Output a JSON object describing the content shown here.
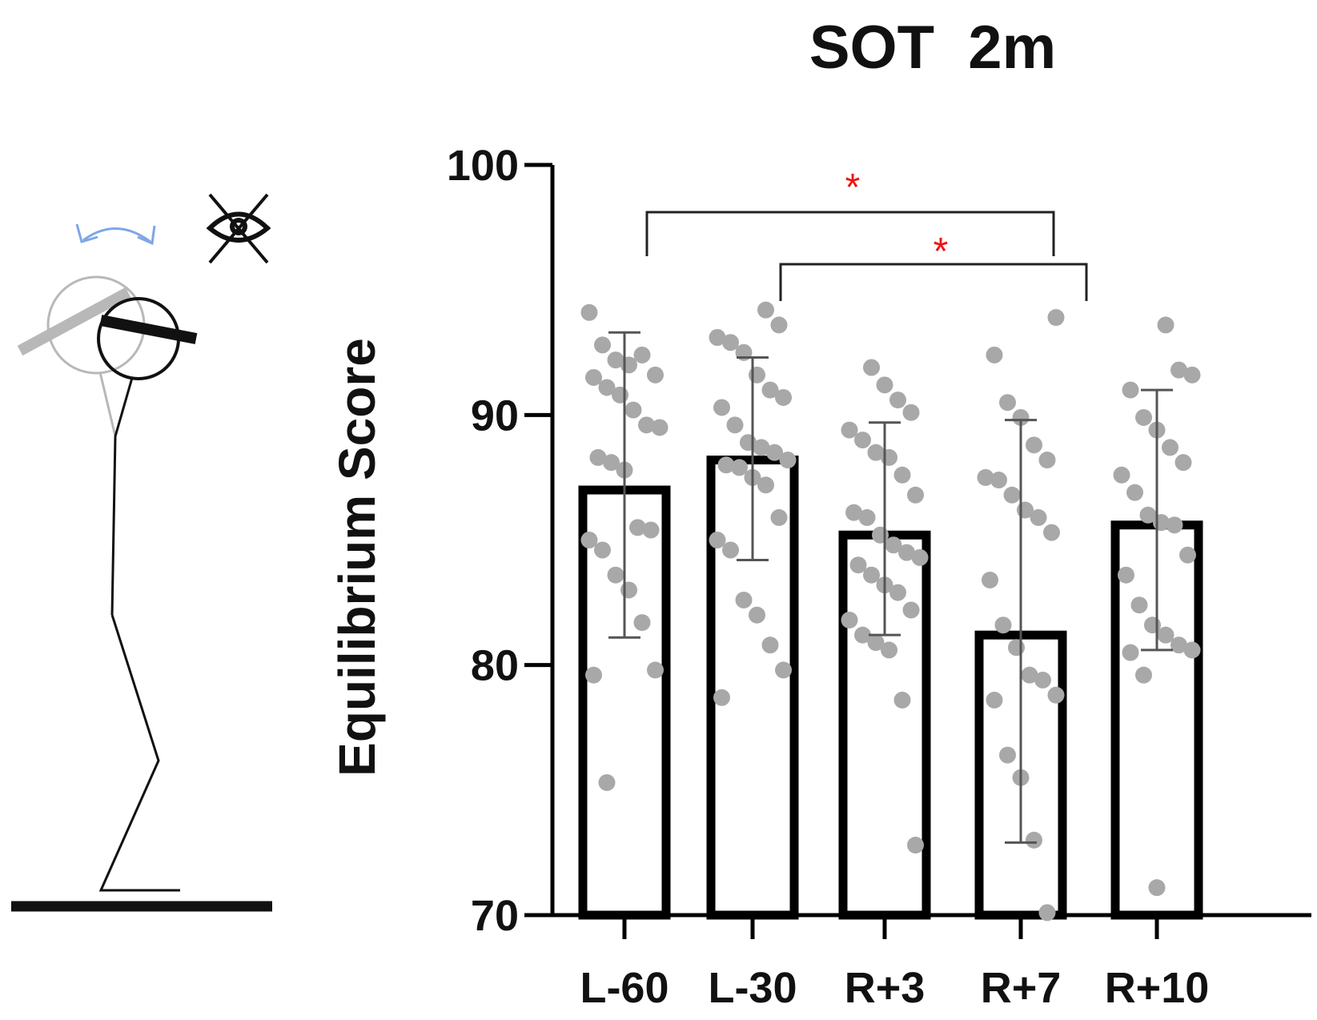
{
  "chart_data": {
    "type": "bar",
    "title": "SOT  2m",
    "xlabel": "",
    "ylabel": "Equilibrium Score",
    "ylim": [
      70,
      100
    ],
    "yticks": [
      "70",
      "80",
      "90",
      "100"
    ],
    "categories": [
      "L-60",
      "L-30",
      "R+3",
      "R+7",
      "R+10"
    ],
    "means": [
      87.0,
      88.2,
      85.2,
      81.2,
      85.6
    ],
    "sd_upper": [
      93.3,
      92.3,
      89.7,
      89.8,
      91.0
    ],
    "sd_lower": [
      81.1,
      84.2,
      81.2,
      72.9,
      80.6
    ],
    "points": [
      [
        94.1,
        92.8,
        92.2,
        92.0,
        92.4,
        91.6,
        91.5,
        91.1,
        90.8,
        90.2,
        89.6,
        89.5,
        88.3,
        88.1,
        87.8,
        85.5,
        85.4,
        85.0,
        84.6,
        83.6,
        83.0,
        81.7,
        79.8,
        79.6,
        75.3
      ],
      [
        94.2,
        93.6,
        93.1,
        92.9,
        92.5,
        91.6,
        91.0,
        90.7,
        90.3,
        89.6,
        88.9,
        88.7,
        88.5,
        88.2,
        88.0,
        87.9,
        87.5,
        87.2,
        85.9,
        85.0,
        84.6,
        82.6,
        82.0,
        80.8,
        79.8,
        78.7
      ],
      [
        91.9,
        91.2,
        90.6,
        90.1,
        89.4,
        89.0,
        88.5,
        88.3,
        87.6,
        86.8,
        86.1,
        85.9,
        85.2,
        84.8,
        84.5,
        84.3,
        84.0,
        83.6,
        83.2,
        82.9,
        82.2,
        81.8,
        81.2,
        80.9,
        80.6,
        78.6,
        72.8
      ],
      [
        93.9,
        92.4,
        90.5,
        89.9,
        88.8,
        88.2,
        87.5,
        87.4,
        86.8,
        86.2,
        85.9,
        85.3,
        83.4,
        81.6,
        80.7,
        79.6,
        79.4,
        78.8,
        78.6,
        76.4,
        75.5,
        73.0,
        70.1
      ],
      [
        93.6,
        91.8,
        91.6,
        91.0,
        89.9,
        89.4,
        88.7,
        88.1,
        87.6,
        86.9,
        86.0,
        85.7,
        85.6,
        84.4,
        83.6,
        82.4,
        81.6,
        81.2,
        80.8,
        80.6,
        80.5,
        79.6,
        71.1
      ]
    ],
    "significance": [
      {
        "from": "L-60",
        "to": "R+7",
        "label": "*"
      },
      {
        "from": "L-30",
        "to": "R+10",
        "label": "*"
      }
    ],
    "colors": {
      "bar_edge": "#000000",
      "bar_fill": "#ffffff",
      "points": "#a8a8a8",
      "error_bars": "#555555",
      "significance": "#ee1111"
    }
  },
  "illustration": {
    "description_icons": [
      "head-tilt-arrow-icon",
      "eyes-closed-icon",
      "stick-figure-icon"
    ],
    "colors": {
      "arrow": "#7fa6e6",
      "head_shadow": "#b8b8b8",
      "figure": "#111111"
    }
  }
}
